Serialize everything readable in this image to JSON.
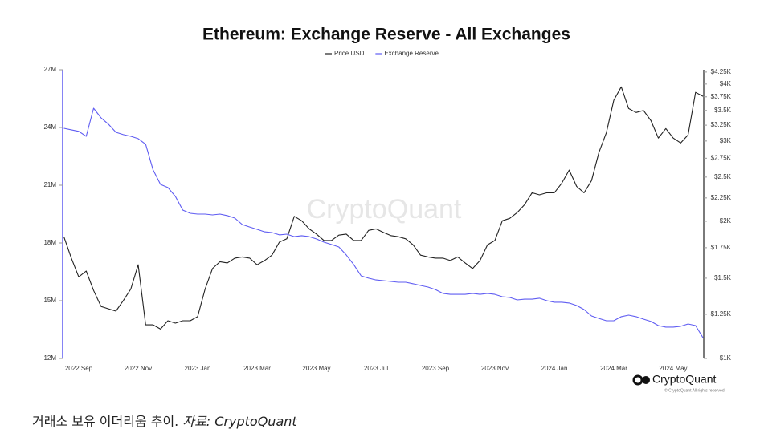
{
  "chart_data": {
    "type": "line",
    "title": "Ethereum: Exchange Reserve - All Exchanges",
    "legend": "top",
    "categories": [
      null,
      null,
      "2022 Sep",
      null,
      null,
      null,
      null,
      null,
      null,
      null,
      "2022 Nov",
      null,
      null,
      null,
      null,
      null,
      null,
      null,
      "2023 Jan",
      null,
      null,
      null,
      null,
      null,
      null,
      null,
      "2023 Mar",
      null,
      null,
      null,
      null,
      null,
      null,
      null,
      "2023 May",
      null,
      null,
      null,
      null,
      null,
      null,
      null,
      "2023 Jul",
      null,
      null,
      null,
      null,
      null,
      null,
      null,
      "2023 Sep",
      null,
      null,
      null,
      null,
      null,
      null,
      null,
      "2023 Nov",
      null,
      null,
      null,
      null,
      null,
      null,
      null,
      "2024 Jan",
      null,
      null,
      null,
      null,
      null,
      null,
      null,
      "2024 Mar",
      null,
      null,
      null,
      null,
      null,
      null,
      null,
      "2024 May",
      null,
      null,
      null,
      null
    ],
    "series": [
      {
        "name": "Price USD",
        "color": "#222222",
        "axis": "y2",
        "values": [
          1850,
          1660,
          1510,
          1555,
          1410,
          1300,
          1285,
          1270,
          1340,
          1420,
          1605,
          1185,
          1185,
          1160,
          1210,
          1195,
          1210,
          1210,
          1235,
          1420,
          1575,
          1630,
          1620,
          1660,
          1670,
          1660,
          1605,
          1640,
          1685,
          1800,
          1830,
          2050,
          2005,
          1925,
          1875,
          1815,
          1815,
          1865,
          1875,
          1815,
          1815,
          1910,
          1925,
          1890,
          1860,
          1850,
          1830,
          1775,
          1685,
          1670,
          1660,
          1660,
          1640,
          1670,
          1620,
          1575,
          1640,
          1775,
          1815,
          2005,
          2030,
          2090,
          2175,
          2310,
          2285,
          2310,
          2310,
          2425,
          2590,
          2385,
          2310,
          2455,
          2830,
          3130,
          3685,
          3945,
          3535,
          3465,
          3500,
          3325,
          3045,
          3195,
          3045,
          2970,
          3095,
          3835,
          3760
        ]
      },
      {
        "name": "Exchange Reserve",
        "color": "#5f5cf2",
        "values": [
          23960000,
          23880000,
          23800000,
          23540000,
          25000000,
          24500000,
          24170000,
          23750000,
          23630000,
          23540000,
          23420000,
          23130000,
          21800000,
          21040000,
          20880000,
          20420000,
          19710000,
          19540000,
          19500000,
          19500000,
          19460000,
          19500000,
          19420000,
          19290000,
          18960000,
          18830000,
          18710000,
          18580000,
          18540000,
          18420000,
          18460000,
          18330000,
          18380000,
          18330000,
          18210000,
          18040000,
          17920000,
          17790000,
          17380000,
          16880000,
          16290000,
          16170000,
          16080000,
          16040000,
          16000000,
          15960000,
          15960000,
          15880000,
          15790000,
          15710000,
          15580000,
          15380000,
          15330000,
          15330000,
          15330000,
          15380000,
          15330000,
          15380000,
          15330000,
          15210000,
          15170000,
          15040000,
          15080000,
          15080000,
          15130000,
          15000000,
          14920000,
          14920000,
          14880000,
          14750000,
          14540000,
          14210000,
          14080000,
          13960000,
          13960000,
          14170000,
          14250000,
          14170000,
          14040000,
          13920000,
          13710000,
          13630000,
          13630000,
          13670000,
          13790000,
          13710000,
          13080000
        ]
      }
    ],
    "ylim": [
      12000000,
      27000000
    ],
    "yticks": [
      {
        "value": 12000000,
        "label": "12M"
      },
      {
        "value": 15000000,
        "label": "15M"
      },
      {
        "value": 18000000,
        "label": "18M"
      },
      {
        "value": 21000000,
        "label": "21M"
      },
      {
        "value": 24000000,
        "label": "24M"
      },
      {
        "value": 27000000,
        "label": "27M"
      }
    ],
    "y2lim": [
      1000,
      4300
    ],
    "y2log": true,
    "y2ticks": [
      {
        "value": 1000,
        "label": "$1K"
      },
      {
        "value": 1250,
        "label": "$1.25K"
      },
      {
        "value": 1500,
        "label": "$1.5K"
      },
      {
        "value": 1750,
        "label": "$1.75K"
      },
      {
        "value": 2000,
        "label": "$2K"
      },
      {
        "value": 2250,
        "label": "$2.25K"
      },
      {
        "value": 2500,
        "label": "$2.5K"
      },
      {
        "value": 2750,
        "label": "$2.75K"
      },
      {
        "value": 3000,
        "label": "$3K"
      },
      {
        "value": 3250,
        "label": "$3.25K"
      },
      {
        "value": 3500,
        "label": "$3.5K"
      },
      {
        "value": 3750,
        "label": "$3.75K"
      },
      {
        "value": 4000,
        "label": "$4K"
      },
      {
        "value": 4250,
        "label": "$4.25K"
      }
    ],
    "grid": false
  },
  "watermark": "CryptoQuant",
  "logo": "CryptoQuant",
  "copyright": "© CryptoQuant All rights reserved.",
  "caption": {
    "text": "거래소 보유 이더리움 추이.",
    "source": "자료: CryptoQuant"
  }
}
